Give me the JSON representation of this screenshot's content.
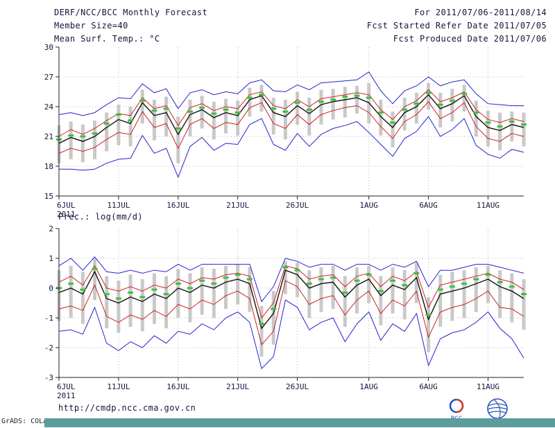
{
  "header": {
    "title_left": "DERF/NCC/BCC Monthly Forecast",
    "member_size": "Member Size=40",
    "range": "For 2011/07/06-2011/08/14",
    "refer_date": "Fcst Started Refer Date 2011/07/05",
    "produced_date": "Fcst Produced Date 2011/07/06"
  },
  "footer": {
    "url": "http://cmdp.ncc.cma.gov.cn",
    "credit": "GrADS: COLA/IGES"
  },
  "logos": {
    "bcc_label": "BCC"
  },
  "colors": {
    "text": "#14143c",
    "teal_bar": "#5d9c9c",
    "blue_line": "#2222cc",
    "red_line": "#cc2222",
    "mean_line": "#111111",
    "green_mark": "#3fbf3f",
    "spread_bar": "#c9c9c9"
  },
  "chart_data": [
    {
      "type": "line",
      "title": "Mean Surf. Temp.: °C",
      "ylim": [
        15,
        30
      ],
      "yticks": [
        15,
        18,
        21,
        24,
        27,
        30
      ],
      "n_points": 40,
      "x_tick_positions": [
        0,
        5,
        10,
        15,
        20,
        26,
        31,
        36
      ],
      "x_tick_labels": [
        "6JUL",
        "11JUL",
        "16JUL",
        "21JUL",
        "26JUL",
        "1AUG",
        "6AUG",
        "11AUG"
      ],
      "year_label": "2011",
      "grid": true,
      "series": [
        {
          "name": "ensemble-max",
          "color": "#2222cc",
          "width": 1,
          "values": [
            23.2,
            23.4,
            23.1,
            23.4,
            24.2,
            24.9,
            24.8,
            26.3,
            25.4,
            25.8,
            23.8,
            25.4,
            25.7,
            25.2,
            25.5,
            25.3,
            26.4,
            26.7,
            25.6,
            25.5,
            26.2,
            25.7,
            26.4,
            26.5,
            26.6,
            26.7,
            27.5,
            25.6,
            24.3,
            25.6,
            26.1,
            27.0,
            26.1,
            26.5,
            26.7,
            25.3,
            24.3,
            24.2,
            24.1,
            24.1
          ]
        },
        {
          "name": "ensemble-min",
          "color": "#2222cc",
          "width": 1,
          "values": [
            17.7,
            17.7,
            17.6,
            17.7,
            18.3,
            18.7,
            18.8,
            21.1,
            19.3,
            19.8,
            16.9,
            20.0,
            20.9,
            19.6,
            20.3,
            20.2,
            22.2,
            22.8,
            20.2,
            19.6,
            21.3,
            20.0,
            21.2,
            21.8,
            22.1,
            22.5,
            21.4,
            20.2,
            19.0,
            20.8,
            21.5,
            23.0,
            21.0,
            21.7,
            22.8,
            20.1,
            19.2,
            18.8,
            19.7,
            19.4
          ]
        },
        {
          "name": "upper-quartile",
          "color": "#cc2222",
          "width": 1,
          "values": [
            21.0,
            21.7,
            21.2,
            21.8,
            22.6,
            23.3,
            23.1,
            24.9,
            23.8,
            24.1,
            22.1,
            23.9,
            24.3,
            23.6,
            24.0,
            23.8,
            25.2,
            25.5,
            24.1,
            23.8,
            24.7,
            24.0,
            24.8,
            25.0,
            25.2,
            25.4,
            25.2,
            23.7,
            22.7,
            24.0,
            24.6,
            25.7,
            24.5,
            24.9,
            25.5,
            23.7,
            22.7,
            22.4,
            22.8,
            22.5
          ]
        },
        {
          "name": "lower-quartile",
          "color": "#cc2222",
          "width": 1,
          "values": [
            19.3,
            19.8,
            19.5,
            19.9,
            20.7,
            21.4,
            21.2,
            23.5,
            21.9,
            22.3,
            19.8,
            22.2,
            22.8,
            21.8,
            22.4,
            22.2,
            23.9,
            24.4,
            22.3,
            21.8,
            23.2,
            22.2,
            23.2,
            23.6,
            23.9,
            24.1,
            23.4,
            22.0,
            20.8,
            22.5,
            23.2,
            24.5,
            22.8,
            23.4,
            24.4,
            22.0,
            20.8,
            20.5,
            21.3,
            21.0
          ]
        },
        {
          "name": "ensemble-mean",
          "color": "#111111",
          "width": 1.4,
          "values": [
            20.3,
            20.9,
            20.5,
            21.0,
            21.9,
            22.7,
            22.3,
            24.4,
            23.1,
            23.4,
            21.2,
            23.2,
            23.7,
            22.9,
            23.4,
            23.1,
            24.7,
            25.1,
            23.4,
            23.0,
            24.1,
            23.3,
            24.2,
            24.5,
            24.7,
            24.9,
            24.4,
            23.0,
            21.9,
            23.4,
            24.0,
            25.2,
            23.8,
            24.3,
            25.1,
            23.0,
            21.9,
            21.6,
            22.2,
            21.9
          ]
        }
      ],
      "spread_bars": {
        "color": "#c9c9c9",
        "top": [
          22.1,
          22.5,
          22.2,
          22.6,
          23.4,
          24.2,
          24.0,
          25.7,
          24.7,
          25.0,
          23.0,
          24.7,
          25.1,
          24.5,
          24.8,
          24.6,
          25.9,
          26.2,
          24.9,
          24.7,
          25.5,
          24.9,
          25.7,
          25.8,
          26.0,
          26.1,
          26.4,
          24.7,
          23.5,
          24.9,
          25.4,
          26.4,
          25.4,
          25.8,
          26.2,
          24.6,
          23.6,
          23.4,
          23.5,
          23.4
        ],
        "bottom": [
          18.3,
          18.7,
          18.4,
          18.7,
          19.5,
          20.1,
          20.0,
          22.3,
          20.6,
          21.0,
          18.3,
          21.0,
          21.8,
          20.7,
          21.3,
          21.1,
          23.0,
          23.5,
          21.2,
          20.7,
          22.2,
          21.1,
          22.2,
          22.7,
          22.9,
          23.3,
          22.3,
          21.1,
          19.9,
          21.6,
          22.3,
          23.7,
          21.9,
          22.5,
          23.5,
          21.0,
          20.0,
          19.6,
          20.5,
          20.0
        ]
      },
      "median_marks": {
        "color": "#3fbf3f",
        "values": [
          20.7,
          21.1,
          21.0,
          21.3,
          22.3,
          23.2,
          22.6,
          24.6,
          23.6,
          23.8,
          21.8,
          23.5,
          23.9,
          23.3,
          23.7,
          23.4,
          24.9,
          25.2,
          23.8,
          23.5,
          24.4,
          23.7,
          24.5,
          24.7,
          25.0,
          25.1,
          24.9,
          23.4,
          22.4,
          23.7,
          24.3,
          25.4,
          24.2,
          24.6,
          25.3,
          23.4,
          22.4,
          22.0,
          22.5,
          22.2
        ]
      }
    },
    {
      "type": "line",
      "title": "Prec.: log(mm/d)",
      "ylim": [
        -3,
        2
      ],
      "yticks": [
        -3,
        -2,
        -1,
        0,
        1,
        2
      ],
      "n_points": 40,
      "x_tick_positions": [
        0,
        5,
        10,
        15,
        20,
        26,
        31,
        36
      ],
      "x_tick_labels": [
        "6JUL",
        "11JUL",
        "16JUL",
        "21JUL",
        "26JUL",
        "1AUG",
        "6AUG",
        "11AUG"
      ],
      "year_label": "2011",
      "grid": true,
      "series": [
        {
          "name": "ensemble-max",
          "color": "#2222cc",
          "width": 1,
          "values": [
            0.75,
            1.0,
            0.6,
            1.05,
            0.55,
            0.5,
            0.6,
            0.5,
            0.6,
            0.55,
            0.8,
            0.6,
            0.8,
            0.8,
            0.8,
            0.8,
            0.8,
            -0.45,
            0.05,
            1.0,
            0.9,
            0.7,
            0.8,
            0.8,
            0.6,
            0.8,
            0.8,
            0.6,
            0.8,
            0.7,
            0.9,
            0.05,
            0.6,
            0.6,
            0.7,
            0.8,
            0.8,
            0.7,
            0.6,
            0.5
          ]
        },
        {
          "name": "ensemble-min",
          "color": "#2222cc",
          "width": 1,
          "values": [
            -1.45,
            -1.4,
            -1.55,
            -0.65,
            -1.85,
            -2.1,
            -1.8,
            -2.0,
            -1.6,
            -1.85,
            -1.45,
            -1.55,
            -1.2,
            -1.4,
            -1.0,
            -0.8,
            -1.15,
            -2.7,
            -2.3,
            -0.4,
            -0.65,
            -1.4,
            -1.15,
            -1.0,
            -1.8,
            -1.2,
            -0.8,
            -1.75,
            -1.2,
            -1.45,
            -0.85,
            -2.6,
            -1.7,
            -1.5,
            -1.4,
            -1.15,
            -0.8,
            -1.35,
            -1.7,
            -2.35
          ]
        },
        {
          "name": "upper-quartile",
          "color": "#cc2222",
          "width": 1,
          "values": [
            0.2,
            0.4,
            0.1,
            0.75,
            0.0,
            -0.1,
            0.05,
            -0.1,
            0.1,
            0.0,
            0.3,
            0.15,
            0.35,
            0.3,
            0.45,
            0.5,
            0.4,
            -1.0,
            -0.5,
            0.75,
            0.65,
            0.3,
            0.4,
            0.45,
            0.05,
            0.4,
            0.5,
            0.05,
            0.4,
            0.25,
            0.55,
            -0.65,
            0.1,
            0.2,
            0.3,
            0.4,
            0.5,
            0.3,
            0.2,
            -0.05
          ]
        },
        {
          "name": "lower-quartile",
          "color": "#cc2222",
          "width": 1,
          "values": [
            -0.7,
            -0.6,
            -0.75,
            0.1,
            -0.95,
            -1.15,
            -0.9,
            -1.05,
            -0.75,
            -0.95,
            -0.55,
            -0.7,
            -0.4,
            -0.55,
            -0.25,
            -0.1,
            -0.35,
            -1.9,
            -1.45,
            0.25,
            0.05,
            -0.55,
            -0.35,
            -0.25,
            -0.9,
            -0.4,
            -0.1,
            -0.85,
            -0.4,
            -0.6,
            -0.1,
            -1.65,
            -0.8,
            -0.65,
            -0.55,
            -0.35,
            -0.1,
            -0.65,
            -0.7,
            -0.95
          ]
        },
        {
          "name": "ensemble-mean",
          "color": "#111111",
          "width": 1.4,
          "values": [
            -0.15,
            0.0,
            -0.2,
            0.55,
            -0.35,
            -0.5,
            -0.3,
            -0.45,
            -0.2,
            -0.35,
            0.0,
            -0.15,
            0.1,
            0.0,
            0.2,
            0.3,
            0.15,
            -1.35,
            -0.85,
            0.6,
            0.45,
            0.0,
            0.15,
            0.2,
            -0.3,
            0.1,
            0.3,
            -0.25,
            0.1,
            -0.05,
            0.35,
            -1.05,
            -0.2,
            -0.1,
            0.0,
            0.15,
            0.3,
            0.05,
            -0.1,
            -0.35
          ]
        }
      ],
      "spread_bars": {
        "color": "#c9c9c9",
        "top": [
          0.6,
          0.75,
          0.55,
          1.0,
          0.4,
          0.25,
          0.45,
          0.3,
          0.5,
          0.4,
          0.65,
          0.5,
          0.7,
          0.65,
          0.75,
          0.8,
          0.7,
          -0.6,
          -0.1,
          0.9,
          0.85,
          0.6,
          0.7,
          0.75,
          0.4,
          0.7,
          0.75,
          0.4,
          0.7,
          0.6,
          0.85,
          -0.3,
          0.45,
          0.55,
          0.6,
          0.7,
          0.75,
          0.6,
          0.5,
          0.3
        ],
        "bottom": [
          -1.1,
          -1.0,
          -1.2,
          -0.4,
          -1.35,
          -1.5,
          -1.3,
          -1.45,
          -1.2,
          -1.35,
          -1.0,
          -1.15,
          -0.9,
          -1.0,
          -0.7,
          -0.55,
          -0.8,
          -2.3,
          -1.9,
          -0.2,
          -0.3,
          -1.0,
          -0.8,
          -0.7,
          -1.3,
          -0.85,
          -0.5,
          -1.25,
          -0.85,
          -1.05,
          -0.5,
          -2.15,
          -1.3,
          -1.1,
          -1.0,
          -0.8,
          -0.5,
          -1.0,
          -1.15,
          -1.4
        ]
      },
      "median_marks": {
        "color": "#3fbf3f",
        "values": [
          0.0,
          0.15,
          -0.05,
          0.65,
          -0.2,
          -0.35,
          -0.15,
          -0.3,
          -0.05,
          -0.2,
          0.15,
          0.0,
          0.25,
          0.15,
          0.35,
          0.45,
          0.3,
          -1.2,
          -0.7,
          0.7,
          0.6,
          0.15,
          0.3,
          0.35,
          -0.15,
          0.25,
          0.45,
          -0.1,
          0.25,
          0.1,
          0.5,
          -0.9,
          -0.05,
          0.05,
          0.15,
          0.3,
          0.45,
          0.2,
          0.05,
          -0.2
        ]
      }
    }
  ]
}
